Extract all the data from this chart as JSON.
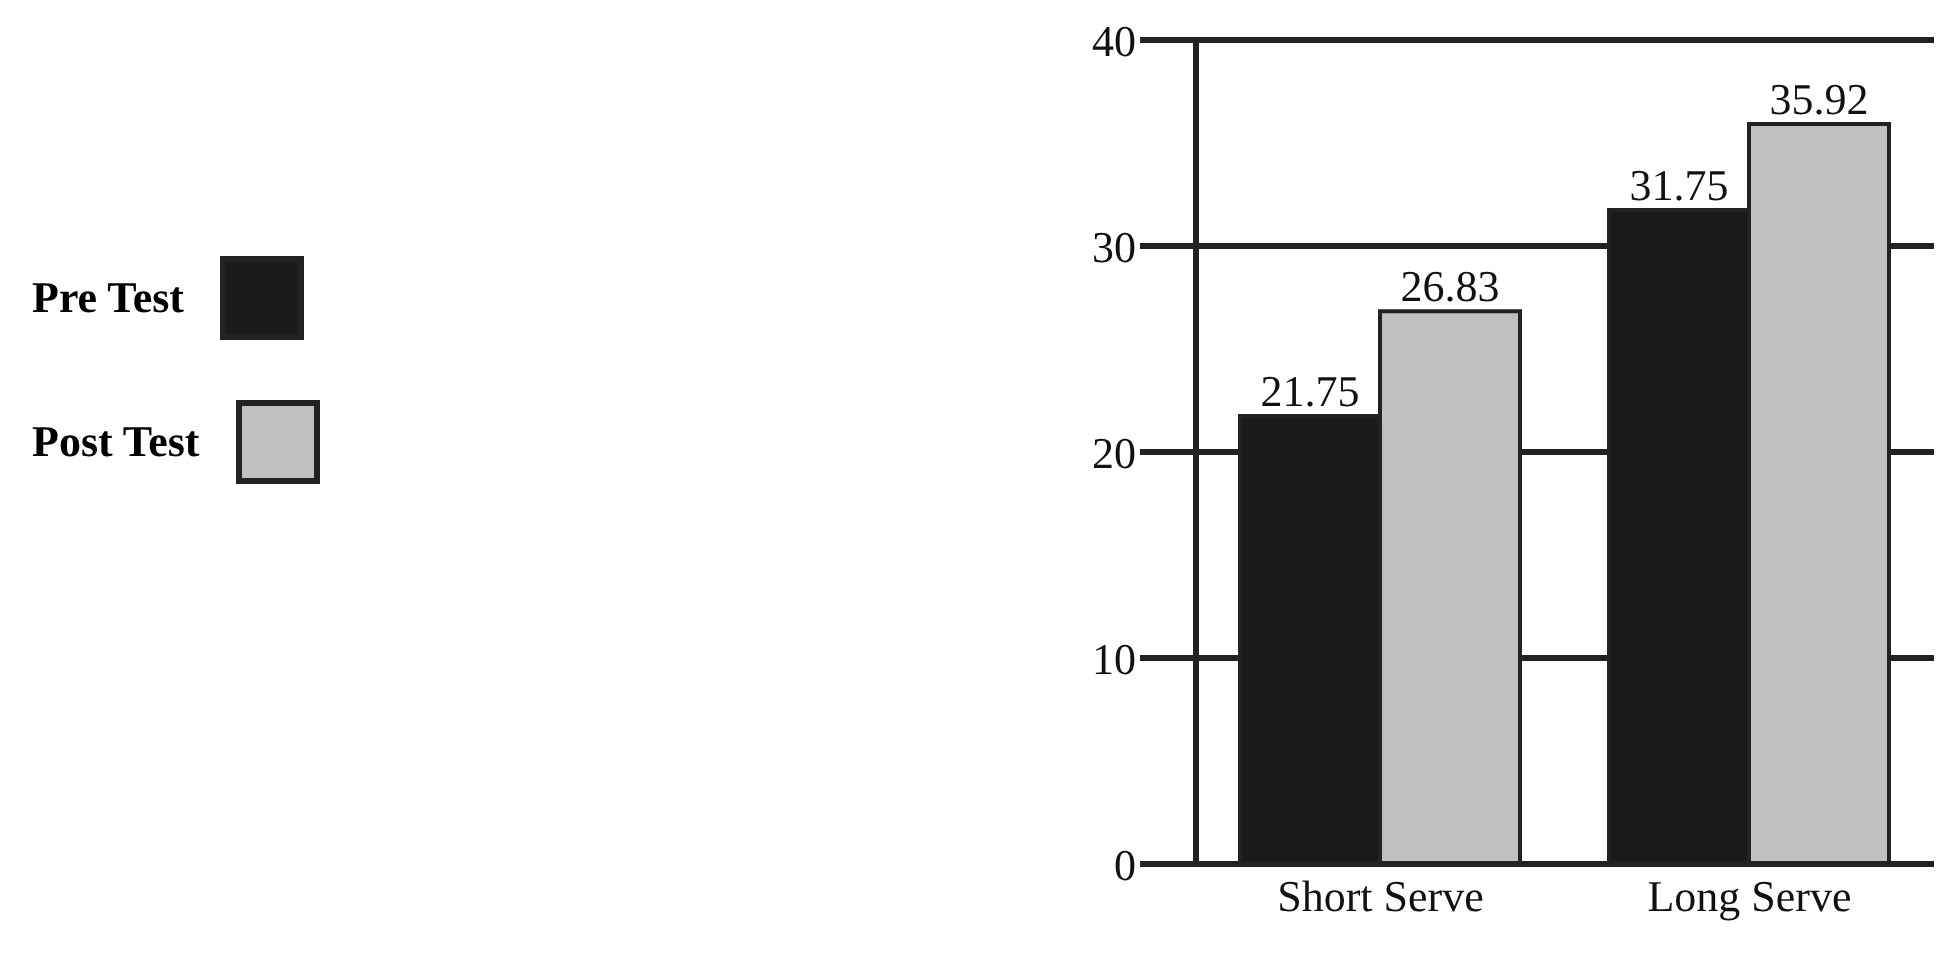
{
  "chart_data": {
    "type": "bar",
    "categories": [
      "Short Serve",
      "Long Serve"
    ],
    "series": [
      {
        "name": "Pre Test",
        "color": "#1a1a1a",
        "values": [
          21.75,
          31.75
        ]
      },
      {
        "name": "Post Test",
        "color": "#c0c0c0",
        "values": [
          26.83,
          35.92
        ]
      }
    ],
    "ylim": [
      0,
      40
    ],
    "yticks": [
      0,
      10,
      20,
      30,
      40
    ],
    "grid": "y",
    "legend": "left",
    "data_labels": true
  }
}
